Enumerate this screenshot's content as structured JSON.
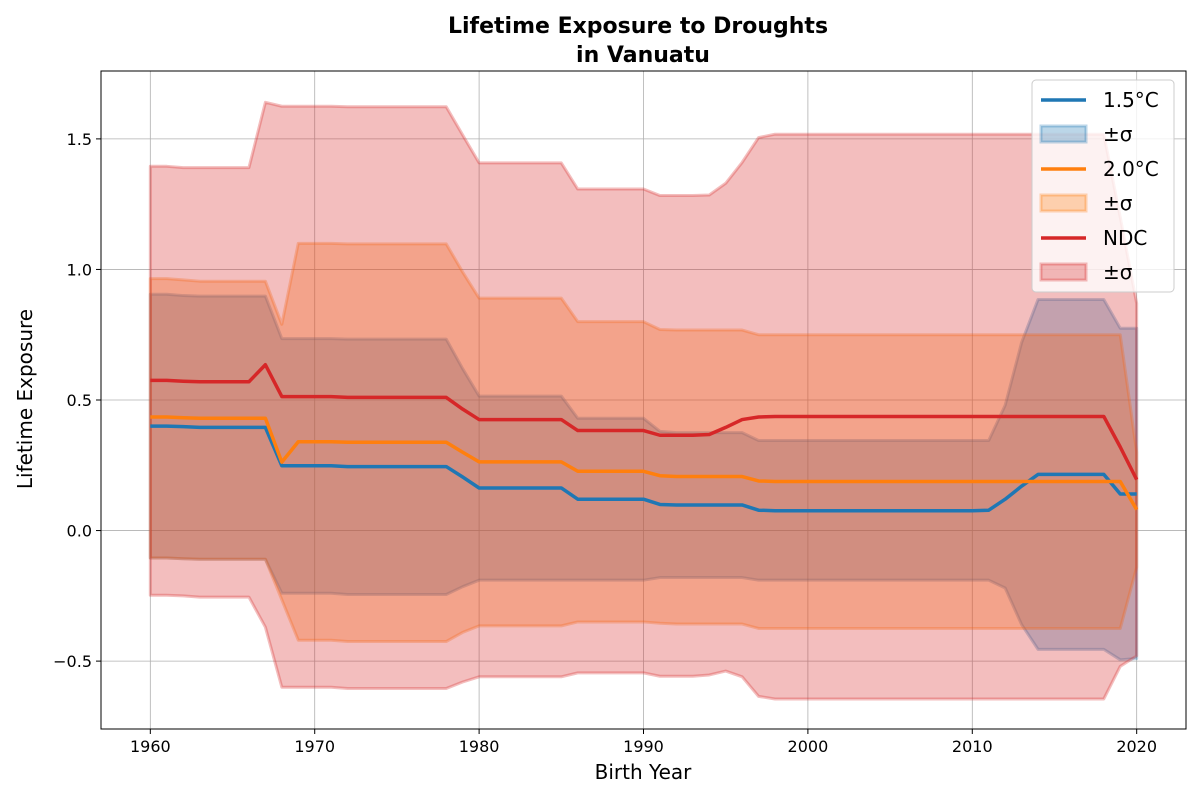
{
  "chart_data": {
    "type": "line",
    "title": "Lifetime Exposure to Droughts",
    "subtitle": "in Vanuatu",
    "xlabel": "Birth Year",
    "ylabel": "Lifetime Exposure",
    "xlim": [
      1957,
      2023
    ],
    "ylim": [
      -0.76,
      1.76
    ],
    "xticks": [
      1960,
      1970,
      1980,
      1990,
      2000,
      2010,
      2020
    ],
    "xtick_labels": [
      "1960",
      "1970",
      "1980",
      "1990",
      "2000",
      "2010",
      "2020"
    ],
    "yticks": [
      -0.5,
      0.0,
      0.5,
      1.0,
      1.5
    ],
    "ytick_labels": [
      "−0.5",
      "0.0",
      "0.5",
      "1.0",
      "1.5"
    ],
    "grid": true,
    "legend_position": "top-right",
    "x": [
      1960,
      1961,
      1962,
      1963,
      1964,
      1965,
      1966,
      1967,
      1968,
      1969,
      1970,
      1971,
      1972,
      1973,
      1974,
      1975,
      1976,
      1977,
      1978,
      1979,
      1980,
      1981,
      1982,
      1983,
      1984,
      1985,
      1986,
      1987,
      1988,
      1989,
      1990,
      1991,
      1992,
      1993,
      1994,
      1995,
      1996,
      1997,
      1998,
      1999,
      2000,
      2001,
      2002,
      2003,
      2004,
      2005,
      2006,
      2007,
      2008,
      2009,
      2010,
      2011,
      2012,
      2013,
      2014,
      2015,
      2016,
      2017,
      2018,
      2019,
      2020
    ],
    "series": [
      {
        "name": "1.5°C",
        "band_label": "±σ",
        "color": "#1f77b4",
        "band_color": "#1f77b4",
        "mean": [
          0.4,
          0.4,
          0.398,
          0.395,
          0.395,
          0.395,
          0.395,
          0.395,
          0.248,
          0.248,
          0.248,
          0.248,
          0.245,
          0.245,
          0.245,
          0.245,
          0.245,
          0.245,
          0.245,
          0.205,
          0.163,
          0.163,
          0.163,
          0.163,
          0.163,
          0.163,
          0.12,
          0.12,
          0.12,
          0.12,
          0.12,
          0.1,
          0.098,
          0.098,
          0.098,
          0.098,
          0.098,
          0.078,
          0.076,
          0.076,
          0.076,
          0.076,
          0.076,
          0.076,
          0.076,
          0.076,
          0.076,
          0.076,
          0.076,
          0.076,
          0.076,
          0.078,
          0.12,
          0.17,
          0.215,
          0.215,
          0.215,
          0.215,
          0.215,
          0.14,
          0.14
        ],
        "upper": [
          0.905,
          0.905,
          0.9,
          0.898,
          0.898,
          0.898,
          0.898,
          0.898,
          0.735,
          0.735,
          0.735,
          0.735,
          0.733,
          0.733,
          0.733,
          0.733,
          0.733,
          0.733,
          0.733,
          0.62,
          0.515,
          0.515,
          0.515,
          0.515,
          0.515,
          0.515,
          0.43,
          0.43,
          0.43,
          0.43,
          0.43,
          0.38,
          0.375,
          0.375,
          0.375,
          0.375,
          0.375,
          0.345,
          0.345,
          0.345,
          0.345,
          0.345,
          0.345,
          0.345,
          0.345,
          0.345,
          0.345,
          0.345,
          0.345,
          0.345,
          0.345,
          0.345,
          0.48,
          0.72,
          0.885,
          0.885,
          0.885,
          0.885,
          0.885,
          0.775,
          0.775
        ],
        "lower": [
          -0.105,
          -0.105,
          -0.108,
          -0.11,
          -0.11,
          -0.11,
          -0.11,
          -0.11,
          -0.24,
          -0.24,
          -0.24,
          -0.24,
          -0.245,
          -0.245,
          -0.245,
          -0.245,
          -0.245,
          -0.245,
          -0.245,
          -0.215,
          -0.19,
          -0.19,
          -0.19,
          -0.19,
          -0.19,
          -0.19,
          -0.19,
          -0.19,
          -0.19,
          -0.19,
          -0.19,
          -0.18,
          -0.18,
          -0.18,
          -0.18,
          -0.18,
          -0.18,
          -0.19,
          -0.19,
          -0.19,
          -0.19,
          -0.19,
          -0.19,
          -0.19,
          -0.19,
          -0.19,
          -0.19,
          -0.19,
          -0.19,
          -0.19,
          -0.19,
          -0.19,
          -0.22,
          -0.36,
          -0.455,
          -0.455,
          -0.455,
          -0.455,
          -0.455,
          -0.495,
          -0.49
        ]
      },
      {
        "name": "2.0°C",
        "band_label": "±σ",
        "color": "#ff7f0e",
        "band_color": "#ff7f0e",
        "mean": [
          0.435,
          0.435,
          0.432,
          0.43,
          0.43,
          0.43,
          0.43,
          0.43,
          0.262,
          0.34,
          0.34,
          0.34,
          0.338,
          0.338,
          0.338,
          0.338,
          0.338,
          0.338,
          0.338,
          0.3,
          0.263,
          0.263,
          0.263,
          0.263,
          0.263,
          0.263,
          0.227,
          0.227,
          0.227,
          0.227,
          0.227,
          0.21,
          0.207,
          0.207,
          0.207,
          0.207,
          0.207,
          0.19,
          0.188,
          0.188,
          0.188,
          0.188,
          0.188,
          0.188,
          0.188,
          0.188,
          0.188,
          0.188,
          0.188,
          0.188,
          0.188,
          0.188,
          0.188,
          0.188,
          0.188,
          0.188,
          0.188,
          0.188,
          0.188,
          0.188,
          0.08
        ],
        "upper": [
          0.965,
          0.965,
          0.96,
          0.955,
          0.955,
          0.955,
          0.955,
          0.955,
          0.79,
          1.1,
          1.1,
          1.1,
          1.098,
          1.098,
          1.098,
          1.098,
          1.098,
          1.098,
          1.098,
          0.99,
          0.89,
          0.89,
          0.89,
          0.89,
          0.89,
          0.89,
          0.8,
          0.8,
          0.8,
          0.8,
          0.8,
          0.77,
          0.768,
          0.768,
          0.768,
          0.768,
          0.768,
          0.75,
          0.75,
          0.75,
          0.75,
          0.75,
          0.75,
          0.75,
          0.75,
          0.75,
          0.75,
          0.75,
          0.75,
          0.75,
          0.75,
          0.75,
          0.75,
          0.75,
          0.75,
          0.75,
          0.75,
          0.75,
          0.75,
          0.75,
          0.3
        ],
        "lower": [
          -0.105,
          -0.105,
          -0.108,
          -0.11,
          -0.11,
          -0.11,
          -0.11,
          -0.11,
          -0.265,
          -0.42,
          -0.42,
          -0.42,
          -0.425,
          -0.425,
          -0.425,
          -0.425,
          -0.425,
          -0.425,
          -0.425,
          -0.39,
          -0.365,
          -0.365,
          -0.365,
          -0.365,
          -0.365,
          -0.365,
          -0.35,
          -0.35,
          -0.35,
          -0.35,
          -0.35,
          -0.355,
          -0.358,
          -0.358,
          -0.358,
          -0.358,
          -0.358,
          -0.375,
          -0.375,
          -0.375,
          -0.375,
          -0.375,
          -0.375,
          -0.375,
          -0.375,
          -0.375,
          -0.375,
          -0.375,
          -0.375,
          -0.375,
          -0.375,
          -0.375,
          -0.375,
          -0.375,
          -0.375,
          -0.375,
          -0.375,
          -0.375,
          -0.375,
          -0.375,
          -0.14
        ]
      },
      {
        "name": "NDC",
        "band_label": "±σ",
        "color": "#d62728",
        "band_color": "#d62728",
        "mean": [
          0.575,
          0.575,
          0.572,
          0.57,
          0.57,
          0.57,
          0.57,
          0.635,
          0.513,
          0.513,
          0.513,
          0.513,
          0.51,
          0.51,
          0.51,
          0.51,
          0.51,
          0.51,
          0.51,
          0.465,
          0.425,
          0.425,
          0.425,
          0.425,
          0.425,
          0.425,
          0.383,
          0.383,
          0.383,
          0.383,
          0.383,
          0.365,
          0.365,
          0.365,
          0.368,
          0.395,
          0.425,
          0.435,
          0.437,
          0.437,
          0.437,
          0.437,
          0.437,
          0.437,
          0.437,
          0.437,
          0.437,
          0.437,
          0.437,
          0.437,
          0.437,
          0.437,
          0.437,
          0.437,
          0.437,
          0.437,
          0.437,
          0.437,
          0.437,
          0.32,
          0.195
        ],
        "upper": [
          1.395,
          1.395,
          1.39,
          1.39,
          1.39,
          1.39,
          1.39,
          1.64,
          1.625,
          1.625,
          1.625,
          1.625,
          1.623,
          1.623,
          1.623,
          1.623,
          1.623,
          1.623,
          1.623,
          1.515,
          1.408,
          1.408,
          1.408,
          1.408,
          1.408,
          1.408,
          1.308,
          1.308,
          1.308,
          1.308,
          1.308,
          1.283,
          1.283,
          1.283,
          1.285,
          1.33,
          1.41,
          1.505,
          1.518,
          1.518,
          1.518,
          1.518,
          1.518,
          1.518,
          1.518,
          1.518,
          1.518,
          1.518,
          1.518,
          1.518,
          1.518,
          1.518,
          1.518,
          1.518,
          1.518,
          1.518,
          1.518,
          1.518,
          1.518,
          1.2,
          0.87
        ],
        "lower": [
          -0.248,
          -0.248,
          -0.25,
          -0.255,
          -0.255,
          -0.255,
          -0.255,
          -0.37,
          -0.6,
          -0.6,
          -0.6,
          -0.6,
          -0.605,
          -0.605,
          -0.605,
          -0.605,
          -0.605,
          -0.605,
          -0.605,
          -0.58,
          -0.56,
          -0.56,
          -0.56,
          -0.56,
          -0.56,
          -0.56,
          -0.545,
          -0.545,
          -0.545,
          -0.545,
          -0.545,
          -0.558,
          -0.558,
          -0.558,
          -0.553,
          -0.538,
          -0.56,
          -0.635,
          -0.645,
          -0.645,
          -0.645,
          -0.645,
          -0.645,
          -0.645,
          -0.645,
          -0.645,
          -0.645,
          -0.645,
          -0.645,
          -0.645,
          -0.645,
          -0.645,
          -0.645,
          -0.645,
          -0.645,
          -0.645,
          -0.645,
          -0.645,
          -0.645,
          -0.52,
          -0.48
        ]
      }
    ]
  }
}
